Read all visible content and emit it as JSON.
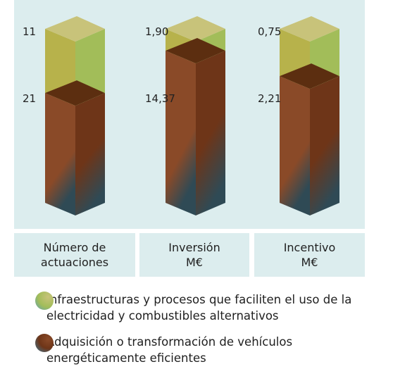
{
  "chart_data": {
    "type": "bar",
    "stacked": true,
    "normalized_per_category": true,
    "categories": [
      "Número de\nactuaciones",
      "Inversión\nM€",
      "Incentivo\nM€"
    ],
    "series": [
      {
        "name": "Infraestructuras y procesos que faciliten el uso de la electricidad y combustibles alternativos",
        "values": [
          11,
          1.9,
          0.75
        ],
        "labels": [
          "11",
          "1,90",
          "0,75"
        ],
        "color_front": "#b7b24b",
        "color_side": "#a2bd59",
        "color_top": "#c8c37a"
      },
      {
        "name": "Adquisición o transformación de vehículos energéticamente eficientes",
        "values": [
          21,
          14.37,
          2.21
        ],
        "labels": [
          "21",
          "14,37",
          "2,21"
        ],
        "color_front": "#8a4a28",
        "color_side": "#6e3518",
        "color_top": "#5c2e10",
        "color_shade": "#2f4a55"
      }
    ],
    "legend_position": "bottom",
    "grid": false
  }
}
